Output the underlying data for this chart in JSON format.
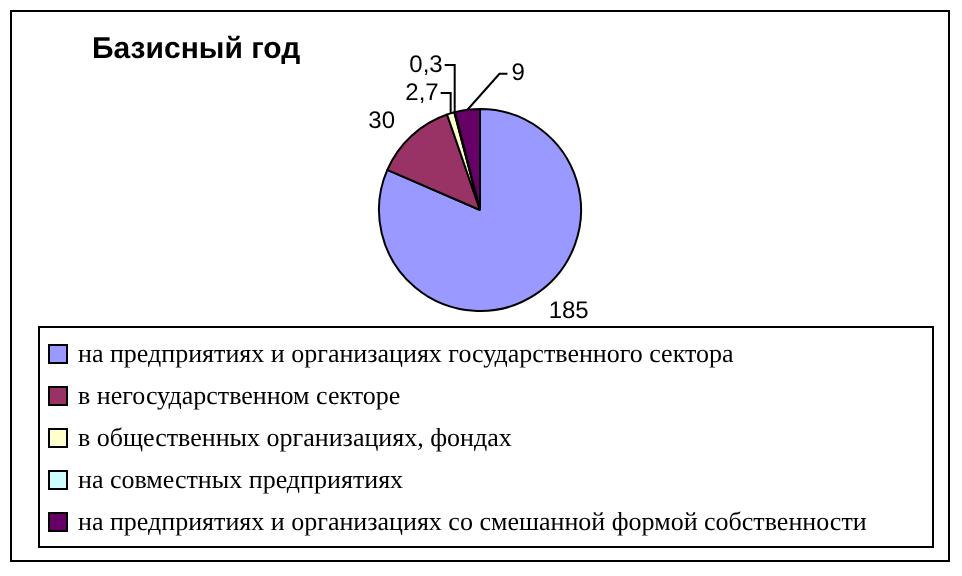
{
  "chart_data": {
    "type": "pie",
    "title": "Базисный год",
    "categories": [
      "на предприятиях и организациях государственного сектора",
      "в негосударственном секторе",
      "в общественных организациях, фондах",
      "на совместных предприятиях",
      "на предприятиях и организациях со смешанной формой собственности"
    ],
    "values": [
      185,
      30,
      2.7,
      0.3,
      9
    ],
    "value_labels": [
      "185",
      "30",
      "2,7",
      "0,3",
      "9"
    ],
    "colors": [
      "#9999ff",
      "#993366",
      "#ffffcc",
      "#ccffff",
      "#660066"
    ],
    "legend": "bottom"
  }
}
